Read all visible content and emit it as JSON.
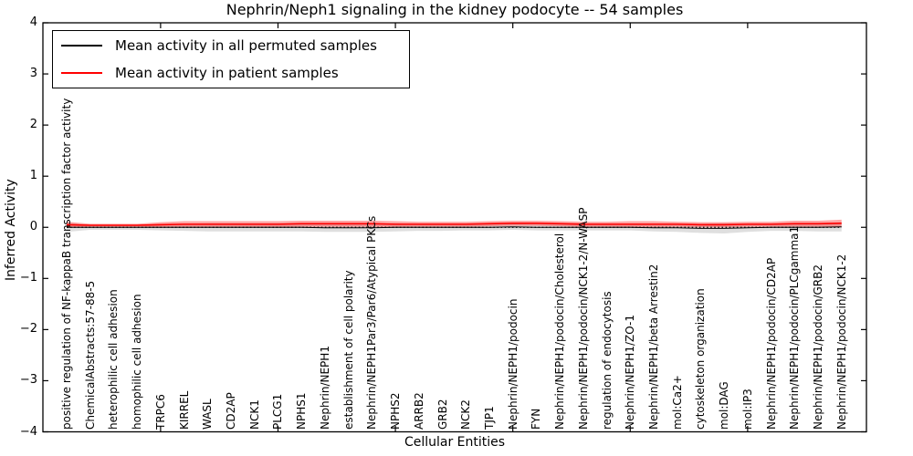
{
  "chart_data": {
    "type": "line",
    "title": "Nephrin/Neph1 signaling in the kidney podocyte -- 54 samples",
    "xlabel": "Cellular Entities",
    "ylabel": "Inferred Activity",
    "ylim": [
      -4,
      4
    ],
    "ytick_labels": [
      "4",
      "3",
      "2",
      "1",
      "0",
      "−1",
      "−2",
      "−3",
      "−4"
    ],
    "x_major_tick_positions": [
      5,
      10,
      15,
      20,
      25,
      30
    ],
    "grid": false,
    "zero_reference_line": {
      "value": 0,
      "style": "dotted",
      "color": "#000000"
    },
    "legend": {
      "position": "upper left",
      "items": [
        {
          "label": "Mean activity in all permuted samples",
          "color": "#000000"
        },
        {
          "label": "Mean activity in patient samples",
          "color": "#ff0000"
        }
      ]
    },
    "categories": [
      "positive regulation of NF-kappaB transcription factor activity",
      "ChemicalAbstracts:57-88-5",
      "heterophilic cell adhesion",
      "homophilic cell adhesion",
      "TRPC6",
      "KIRREL",
      "WASL",
      "CD2AP",
      "NCK1",
      "PLCG1",
      "NPHS1",
      "Nephrin/NEPH1",
      "establishment of cell polarity",
      "Nephrin/NEPH1Par3/Par6/Atypical PKCs",
      "NPHS2",
      "ARRB2",
      "GRB2",
      "NCK2",
      "TJP1",
      "Nephrin/NEPH1/podocin",
      "FYN",
      "Nephrin/NEPH1/podocin/Cholesterol",
      "Nephrin/NEPH1/podocin/NCK1-2/N-WASP",
      "regulation of endocytosis",
      "Nephrin/NEPH1/ZO-1",
      "Nephrin/NEPH1/beta Arrestin2",
      "mol:Ca2+",
      "cytoskeleton organization",
      "mol:DAG",
      "mol:IP3",
      "Nephrin/NEPH1/podocin/CD2AP",
      "Nephrin/NEPH1/podocin/PLCgamma1",
      "Nephrin/NEPH1/podocin/GRB2",
      "Nephrin/NEPH1/podocin/NCK1-2"
    ],
    "series": [
      {
        "name": "Mean activity in all permuted samples",
        "color": "#000000",
        "values": [
          0,
          0,
          0,
          0,
          0,
          0,
          0,
          0,
          0,
          0,
          0,
          -0.01,
          -0.01,
          -0.01,
          0,
          0,
          0,
          0,
          0,
          0.01,
          0,
          0,
          0,
          0,
          0,
          -0.01,
          -0.01,
          -0.02,
          -0.02,
          -0.01,
          0,
          0,
          0,
          0.01
        ],
        "band_halfwidth": [
          0.09,
          0.05,
          0.05,
          0.05,
          0.06,
          0.07,
          0.08,
          0.08,
          0.08,
          0.08,
          0.08,
          0.08,
          0.08,
          0.08,
          0.08,
          0.07,
          0.07,
          0.06,
          0.06,
          0.06,
          0.06,
          0.06,
          0.06,
          0.06,
          0.06,
          0.07,
          0.08,
          0.09,
          0.1,
          0.08,
          0.07,
          0.07,
          0.08,
          0.09
        ],
        "band_color": "#d9d9d9"
      },
      {
        "name": "Mean activity in patient samples",
        "color": "#ff0000",
        "values": [
          0.05,
          0.04,
          0.04,
          0.04,
          0.05,
          0.06,
          0.06,
          0.06,
          0.06,
          0.06,
          0.07,
          0.07,
          0.07,
          0.07,
          0.06,
          0.06,
          0.06,
          0.06,
          0.07,
          0.08,
          0.08,
          0.07,
          0.06,
          0.06,
          0.06,
          0.06,
          0.06,
          0.05,
          0.05,
          0.06,
          0.06,
          0.07,
          0.07,
          0.08
        ],
        "band_halfwidth": [
          0.06,
          0.03,
          0.03,
          0.03,
          0.05,
          0.06,
          0.06,
          0.06,
          0.06,
          0.06,
          0.06,
          0.06,
          0.06,
          0.06,
          0.06,
          0.05,
          0.05,
          0.05,
          0.05,
          0.05,
          0.05,
          0.05,
          0.05,
          0.05,
          0.06,
          0.06,
          0.05,
          0.05,
          0.05,
          0.05,
          0.05,
          0.06,
          0.06,
          0.07
        ],
        "band_color": "#ff0000"
      }
    ]
  }
}
